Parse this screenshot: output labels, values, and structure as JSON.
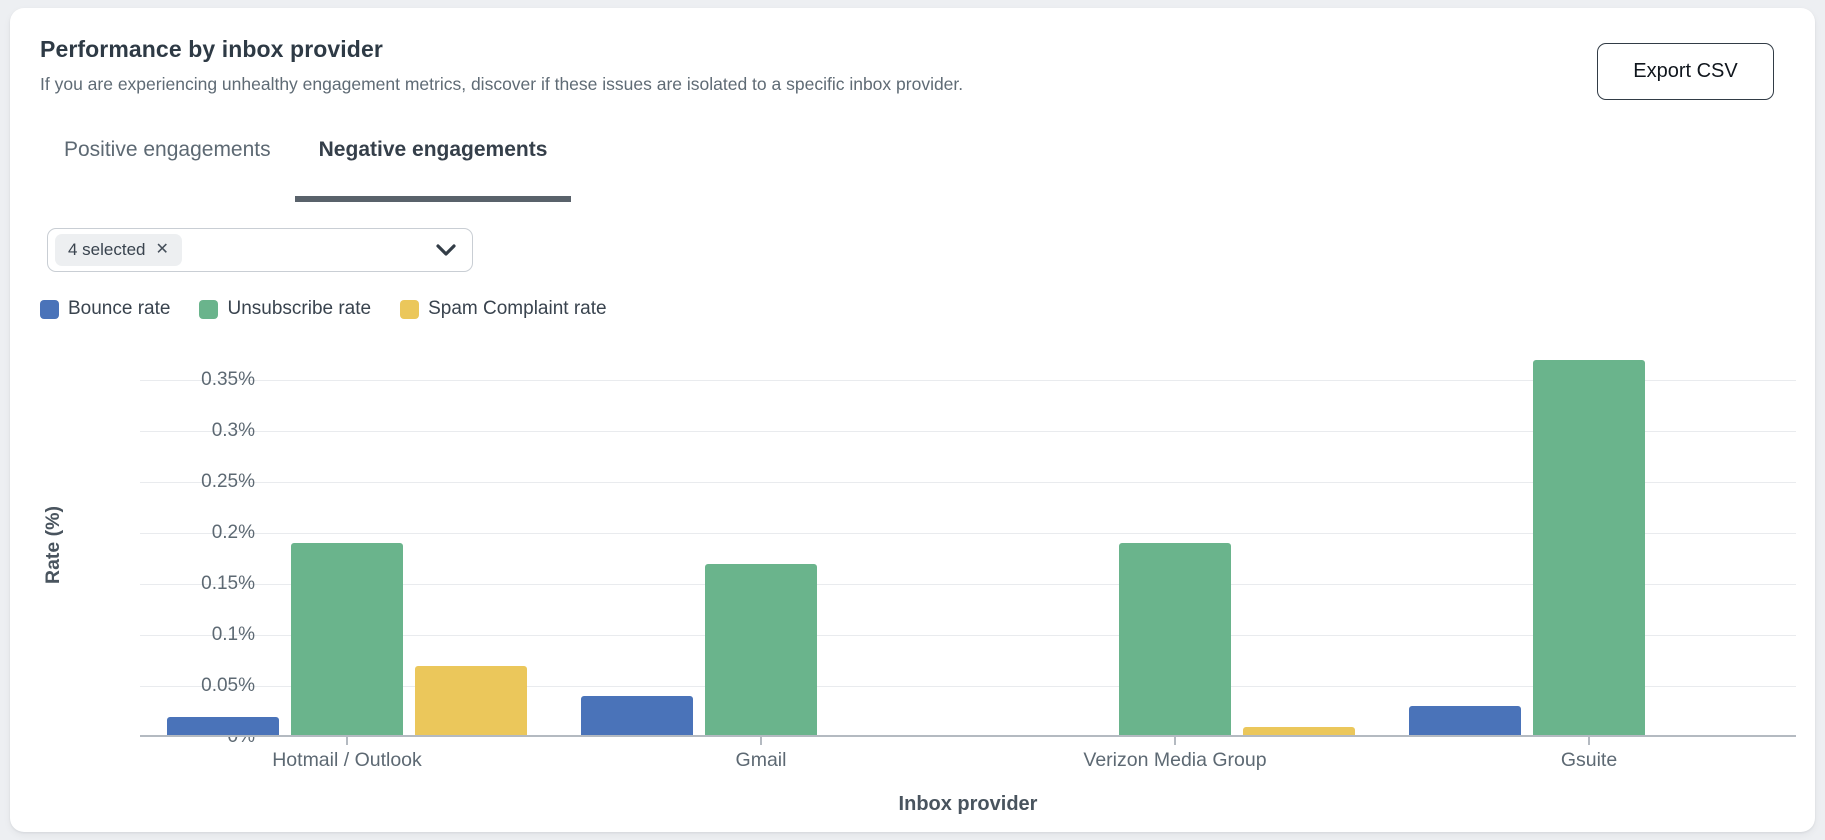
{
  "card": {
    "title": "Performance by inbox provider",
    "subtitle": "If you are experiencing unhealthy engagement metrics, discover if these issues are isolated to a specific inbox provider.",
    "export_button_label": "Export CSV"
  },
  "tabs": [
    {
      "label": "Positive engagements",
      "active": false
    },
    {
      "label": "Negative engagements",
      "active": true
    }
  ],
  "provider_filter": {
    "chip_label": "4 selected",
    "chip_remove_glyph": "✕"
  },
  "colors": {
    "bounce": "#4a73b9",
    "unsubscribe": "#6ab48c",
    "spam": "#ebc75b",
    "gridline": "#e9ebee",
    "axis": "#b4bac1"
  },
  "chart_data": {
    "type": "bar",
    "title": "",
    "xlabel": "Inbox provider",
    "ylabel": "Rate (%)",
    "categories": [
      "Hotmail / Outlook",
      "Gmail",
      "Verizon Media Group",
      "Gsuite"
    ],
    "series": [
      {
        "name": "Bounce rate",
        "color": "#4a73b9",
        "values": [
          0.02,
          0.04,
          0.0,
          0.03
        ]
      },
      {
        "name": "Unsubscribe rate",
        "color": "#6ab48c",
        "values": [
          0.19,
          0.17,
          0.19,
          0.37
        ]
      },
      {
        "name": "Spam Complaint rate",
        "color": "#ebc75b",
        "values": [
          0.07,
          0.0,
          0.01,
          0.0
        ]
      }
    ],
    "ylim": [
      0,
      0.4
    ],
    "yticks": [
      0,
      0.05,
      0.1,
      0.15,
      0.2,
      0.25,
      0.3,
      0.35
    ],
    "ytick_labels": [
      "0%",
      "0.05%",
      "0.1%",
      "0.15%",
      "0.2%",
      "0.25%",
      "0.3%",
      "0.35%"
    ],
    "grid": true,
    "legend_position": "top-left"
  }
}
